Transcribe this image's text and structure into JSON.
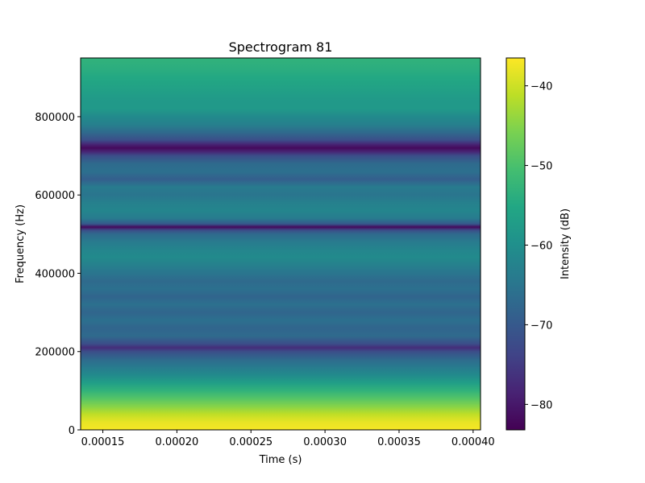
{
  "chart_data": {
    "type": "heatmap",
    "title": "Spectrogram 81",
    "xlabel": "Time (s)",
    "ylabel": "Frequency (Hz)",
    "colorbar_label": "Intensity (dB)",
    "colormap": "viridis",
    "xlim": [
      0.000135,
      0.000405
    ],
    "ylim": [
      0,
      950000
    ],
    "clim": [
      -83.2,
      -36.5
    ],
    "xticks": [
      {
        "value": 0.00015,
        "label": "0.00015"
      },
      {
        "value": 0.0002,
        "label": "0.00020"
      },
      {
        "value": 0.00025,
        "label": "0.00025"
      },
      {
        "value": 0.0003,
        "label": "0.00030"
      },
      {
        "value": 0.00035,
        "label": "0.00035"
      },
      {
        "value": 0.0004,
        "label": "0.00040"
      }
    ],
    "yticks": [
      {
        "value": 0,
        "label": "0"
      },
      {
        "value": 200000,
        "label": "200000"
      },
      {
        "value": 400000,
        "label": "400000"
      },
      {
        "value": 600000,
        "label": "600000"
      },
      {
        "value": 800000,
        "label": "800000"
      }
    ],
    "cticks": [
      {
        "value": -40,
        "label": "−40"
      },
      {
        "value": -50,
        "label": "−50"
      },
      {
        "value": -60,
        "label": "−60"
      },
      {
        "value": -70,
        "label": "−70"
      },
      {
        "value": -80,
        "label": "−80"
      }
    ],
    "frequency_profile": {
      "note": "intensity is constant over time; values are dB at each frequency (Hz)",
      "frequency_hz": [
        0,
        20000,
        40000,
        60000,
        80000,
        100000,
        120000,
        140000,
        160000,
        180000,
        200000,
        210000,
        220000,
        240000,
        260000,
        280000,
        300000,
        320000,
        340000,
        360000,
        380000,
        400000,
        420000,
        440000,
        460000,
        480000,
        500000,
        510000,
        518000,
        526000,
        540000,
        560000,
        580000,
        600000,
        620000,
        640000,
        660000,
        680000,
        700000,
        710000,
        720000,
        730000,
        740000,
        760000,
        780000,
        800000,
        820000,
        840000,
        860000,
        880000,
        900000,
        920000,
        950000
      ],
      "intensity_db": [
        -37,
        -38,
        -41,
        -45,
        -49,
        -53,
        -57,
        -61,
        -64,
        -67,
        -72,
        -77,
        -72,
        -67,
        -68,
        -66,
        -68,
        -66,
        -68,
        -66,
        -67,
        -65,
        -63,
        -61,
        -62,
        -64,
        -67,
        -72,
        -82,
        -70,
        -64,
        -62,
        -63,
        -65,
        -64,
        -69,
        -66,
        -67,
        -72,
        -78,
        -82,
        -78,
        -72,
        -67,
        -63,
        -61,
        -58,
        -58,
        -57,
        -56,
        -55,
        -54,
        -53
      ]
    }
  }
}
